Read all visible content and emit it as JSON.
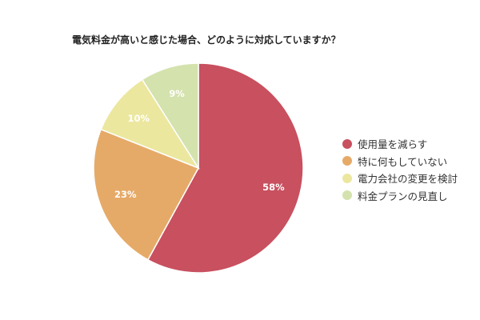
{
  "chart_data": {
    "type": "pie",
    "title": "電気料金が高いと感じた場合、どのように対応していますか？",
    "slices": [
      {
        "label": "使用量を減らす",
        "value": 58,
        "value_label": "58%",
        "color": "#c8505f"
      },
      {
        "label": "特に何もしていない",
        "value": 23,
        "value_label": "23%",
        "color": "#e6aa68"
      },
      {
        "label": "電力会社の変更を検討",
        "value": 10,
        "value_label": "10%",
        "color": "#ece79f"
      },
      {
        "label": "料金プランの見直し",
        "value": 9,
        "value_label": "9%",
        "color": "#d4e2ad"
      }
    ],
    "start_angle": "12 o'clock",
    "direction": "clockwise",
    "legend_position": "right"
  }
}
